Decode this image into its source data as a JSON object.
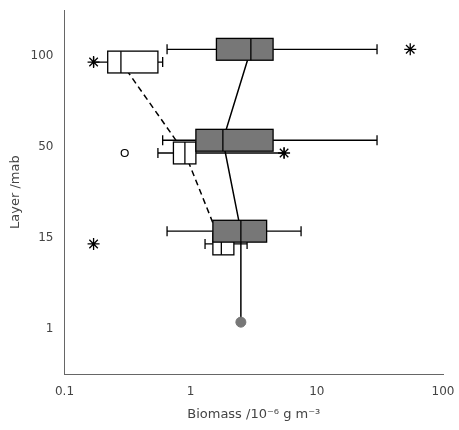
{
  "chart_data": {
    "type": "box",
    "orientation": "horizontal",
    "log": "x",
    "xlabel": "Biomass /10⁻⁶ g m⁻³",
    "ylabel": "Layer /mab",
    "categories": [
      "100",
      "50",
      "15",
      "1"
    ],
    "xlim": [
      0.1,
      100
    ],
    "xticks": [
      0.1,
      1,
      10,
      100
    ],
    "grid": false,
    "series": [
      {
        "color": "white",
        "q10": [
          0.17,
          0.55,
          1.3,
          null
        ],
        "q25": [
          0.22,
          0.73,
          1.5,
          null
        ],
        "median": [
          0.28,
          0.9,
          1.75,
          null
        ],
        "q75": [
          0.55,
          1.1,
          2.2,
          null
        ],
        "q90": [
          0.6,
          5.5,
          2.8,
          null
        ],
        "median_line": {
          "line_style": "dashed",
          "values": [
            0.28,
            0.9,
            1.75,
            null
          ]
        },
        "outliers": [
          {
            "marker": "star",
            "color": "black",
            "values": [
              0.17,
              5.5,
              0.17,
              null
            ]
          },
          {
            "marker": "open_circle",
            "color": "black",
            "values": [
              null,
              0.3,
              null,
              null
            ]
          }
        ]
      },
      {
        "color": "#777777",
        "q10": [
          0.65,
          0.6,
          0.65,
          null
        ],
        "q25": [
          1.6,
          1.1,
          1.5,
          null
        ],
        "median": [
          3.0,
          1.8,
          2.5,
          null
        ],
        "q75": [
          4.5,
          4.5,
          4.0,
          null
        ],
        "q90": [
          30.0,
          30.0,
          7.5,
          null
        ],
        "median_line": {
          "line_style": "solid",
          "values": [
            3.0,
            1.8,
            2.5,
            2.5
          ]
        },
        "outliers": [
          {
            "marker": "star",
            "color": "black",
            "values": [
              55,
              null,
              null,
              null
            ]
          },
          {
            "marker": "circle",
            "color": "#777777",
            "values": [
              null,
              null,
              null,
              2.5
            ]
          }
        ]
      }
    ]
  }
}
